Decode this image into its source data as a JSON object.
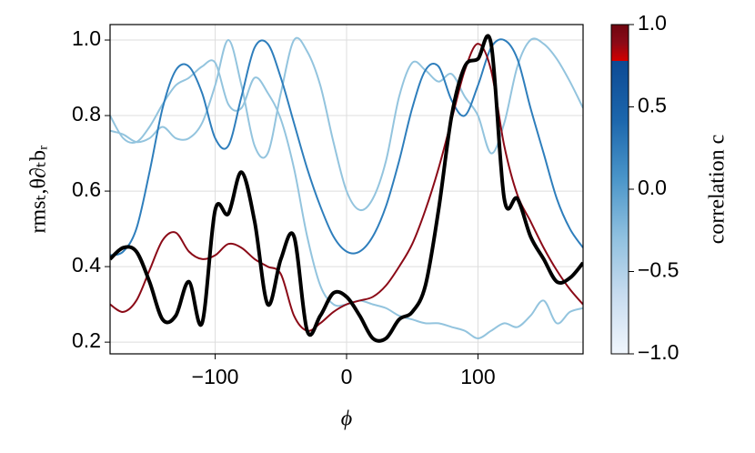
{
  "chart_data": {
    "type": "line",
    "xlabel": "ϕ",
    "ylabel": "rmsₜ,θ∂ₜbᵣ",
    "x": [
      -180,
      -170,
      -160,
      -150,
      -140,
      -130,
      -120,
      -110,
      -100,
      -90,
      -80,
      -70,
      -60,
      -50,
      -40,
      -30,
      -20,
      -10,
      0,
      10,
      20,
      30,
      40,
      50,
      60,
      70,
      80,
      90,
      100,
      110,
      120,
      130,
      140,
      150,
      160,
      170,
      180
    ],
    "series": [
      {
        "color": "#93c4de",
        "width": 2,
        "values": [
          0.8,
          0.74,
          0.73,
          0.77,
          0.83,
          0.88,
          0.9,
          0.93,
          0.94,
          0.83,
          0.82,
          0.9,
          0.86,
          0.79,
          0.66,
          0.48,
          0.35,
          0.3,
          0.3,
          0.31,
          0.3,
          0.29,
          0.27,
          0.26,
          0.25,
          0.25,
          0.24,
          0.23,
          0.21,
          0.23,
          0.25,
          0.24,
          0.27,
          0.31,
          0.25,
          0.28,
          0.29
        ]
      },
      {
        "color": "#93c4de",
        "width": 2,
        "values": [
          0.76,
          0.75,
          0.73,
          0.74,
          0.77,
          0.74,
          0.74,
          0.78,
          0.88,
          1.0,
          0.88,
          0.72,
          0.7,
          0.86,
          1.0,
          0.97,
          0.88,
          0.73,
          0.6,
          0.55,
          0.58,
          0.68,
          0.85,
          0.94,
          0.92,
          0.89,
          0.91,
          0.85,
          0.8,
          0.7,
          0.78,
          0.93,
          1.0,
          0.99,
          0.95,
          0.89,
          0.82
        ]
      },
      {
        "color": "#2e7ebc",
        "width": 2,
        "values": [
          0.43,
          0.44,
          0.5,
          0.65,
          0.82,
          0.92,
          0.93,
          0.86,
          0.74,
          0.72,
          0.85,
          0.98,
          0.99,
          0.9,
          0.78,
          0.66,
          0.56,
          0.48,
          0.44,
          0.44,
          0.48,
          0.56,
          0.68,
          0.82,
          0.92,
          0.93,
          0.84,
          0.8,
          0.88,
          0.98,
          1.0,
          0.95,
          0.82,
          0.7,
          0.58,
          0.5,
          0.45
        ]
      },
      {
        "color": "#8b0a17",
        "width": 2,
        "values": [
          0.3,
          0.28,
          0.31,
          0.39,
          0.47,
          0.49,
          0.44,
          0.42,
          0.43,
          0.46,
          0.45,
          0.42,
          0.4,
          0.38,
          0.27,
          0.23,
          0.25,
          0.28,
          0.3,
          0.31,
          0.32,
          0.35,
          0.4,
          0.46,
          0.55,
          0.66,
          0.79,
          0.92,
          0.99,
          0.92,
          0.72,
          0.59,
          0.52,
          0.45,
          0.39,
          0.34,
          0.3
        ]
      },
      {
        "color": "#000000",
        "width": 4,
        "values": [
          0.42,
          0.45,
          0.44,
          0.36,
          0.26,
          0.27,
          0.36,
          0.25,
          0.55,
          0.54,
          0.65,
          0.52,
          0.3,
          0.42,
          0.48,
          0.23,
          0.27,
          0.33,
          0.32,
          0.27,
          0.21,
          0.21,
          0.26,
          0.28,
          0.35,
          0.55,
          0.8,
          0.93,
          0.95,
          0.99,
          0.58,
          0.58,
          0.48,
          0.42,
          0.36,
          0.37,
          0.41
        ]
      }
    ],
    "xlim": [
      -180,
      180
    ],
    "xticks": [
      {
        "value": -100,
        "label": "−100"
      },
      0,
      100
    ],
    "ylim": [
      0.169,
      1.041
    ],
    "yticks": [
      0.2,
      0.4,
      0.6,
      0.8,
      {
        "value": 1,
        "label": "1.0"
      }
    ],
    "grid": true,
    "colorbar": {
      "label": "correlation c",
      "lim": [
        -1,
        1
      ],
      "ticks": [
        {
          "value": -1,
          "label": "−1.0"
        },
        {
          "value": -0.5,
          "label": "−0.5"
        },
        {
          "value": 0,
          "label": "0.0"
        },
        0.5,
        {
          "value": 1,
          "label": "1.0"
        }
      ],
      "colors": [
        "#f0f6fd",
        "#c8dcef",
        "#8fc0df",
        "#4a95c9",
        "#1c66ac",
        "#0d4a94",
        "#d30000",
        "#8b0a17",
        "#6e0510"
      ]
    }
  }
}
